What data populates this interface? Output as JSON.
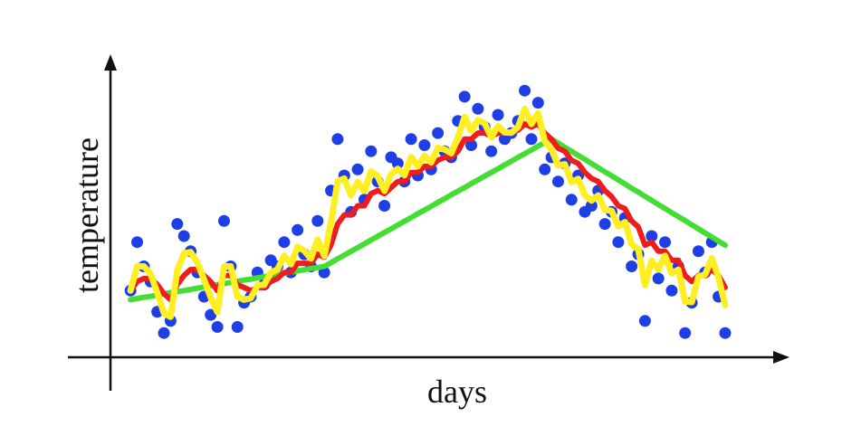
{
  "chart_data": {
    "type": "line",
    "x_label": "days",
    "y_label": "temperature",
    "xlim": [
      0,
      100
    ],
    "ylim": [
      0,
      100
    ],
    "x": [
      3,
      4,
      5,
      6,
      7,
      8,
      9,
      10,
      11,
      12,
      13,
      14,
      15,
      16,
      17,
      18,
      19,
      20,
      21,
      22,
      23,
      24,
      25,
      26,
      27,
      28,
      29,
      30,
      31,
      32,
      33,
      34,
      35,
      36,
      37,
      38,
      39,
      40,
      41,
      42,
      43,
      44,
      45,
      46,
      47,
      48,
      49,
      50,
      51,
      52,
      53,
      54,
      55,
      56,
      57,
      58,
      59,
      60,
      61,
      62,
      63,
      64,
      65,
      66,
      67,
      68,
      69,
      70,
      71,
      72,
      73,
      74,
      75,
      76,
      77,
      78,
      79,
      80,
      81,
      82,
      83,
      84,
      85,
      86,
      87,
      88,
      89,
      90,
      91,
      92
    ],
    "series": [
      {
        "mode": "markers",
        "color": "#1f3fe6",
        "values": [
          22,
          38,
          30,
          25,
          15,
          8,
          12,
          44,
          40,
          35,
          28,
          20,
          14,
          10,
          45,
          30,
          10,
          18,
          20,
          28,
          24,
          32,
          30,
          38,
          28,
          42,
          34,
          30,
          45,
          28,
          55,
          72,
          60,
          48,
          62,
          52,
          68,
          58,
          50,
          66,
          64,
          58,
          72,
          60,
          70,
          62,
          74,
          68,
          66,
          78,
          86,
          70,
          82,
          76,
          68,
          80,
          72,
          74,
          78,
          88,
          72,
          84,
          62,
          66,
          58,
          64,
          52,
          60,
          48,
          50,
          55,
          44,
          48,
          38,
          46,
          30,
          34,
          12,
          40,
          26,
          38,
          22,
          30,
          8,
          18,
          35,
          28,
          38,
          20,
          8
        ]
      },
      {
        "mode": "line",
        "color": "#44dd33",
        "values": [
          19,
          19.4,
          19.8,
          20.1,
          20.5,
          20.9,
          21.3,
          21.7,
          22,
          22.4,
          22.8,
          23.2,
          23.6,
          23.9,
          24.3,
          24.7,
          25.1,
          25.5,
          25.8,
          26.2,
          26.6,
          27,
          27.4,
          27.7,
          28.1,
          28.5,
          28.9,
          29.3,
          29.6,
          30,
          31.2,
          32.5,
          33.7,
          35,
          36.2,
          37.4,
          38.7,
          39.9,
          41.2,
          42.4,
          43.6,
          44.9,
          46.1,
          47.4,
          48.6,
          49.8,
          51.1,
          52.3,
          53.6,
          54.8,
          56,
          57.3,
          58.5,
          59.8,
          61,
          62.2,
          63.5,
          64.7,
          66,
          67.2,
          68.4,
          69.7,
          70.9,
          72,
          70.7,
          69.3,
          68,
          66.6,
          65.3,
          63.9,
          62.6,
          61.2,
          59.9,
          58.5,
          57.2,
          55.8,
          54.5,
          53.1,
          51.8,
          50.4,
          49.1,
          47.7,
          46.4,
          45.1,
          43.7,
          42.4,
          41,
          39.7,
          38.3,
          37
        ]
      },
      {
        "mode": "line",
        "color": "#ee1c1c",
        "values": [
          22,
          25,
          26,
          26,
          24,
          21,
          19,
          24,
          27,
          29,
          29,
          27,
          25,
          22,
          27,
          27,
          24,
          23,
          22,
          23,
          23,
          25,
          26,
          28,
          28,
          31,
          31,
          31,
          34,
          33,
          37,
          44,
          47,
          47,
          50,
          50,
          54,
          55,
          54,
          56,
          58,
          58,
          61,
          61,
          63,
          63,
          65,
          66,
          66,
          68,
          72,
          72,
          74,
          74,
          73,
          74,
          74,
          74,
          75,
          77,
          76,
          77,
          74,
          72,
          69,
          68,
          65,
          64,
          61,
          59,
          58,
          55,
          53,
          50,
          49,
          45,
          43,
          37,
          38,
          35,
          35,
          32,
          32,
          27,
          25,
          27,
          27,
          29,
          27,
          23
        ]
      },
      {
        "mode": "line",
        "color": "#ffee22",
        "values": [
          22,
          30,
          30,
          27.5,
          21.3,
          14.6,
          13.3,
          28.7,
          34.3,
          34.7,
          31.3,
          25.7,
          19.8,
          14.9,
          30,
          30,
          20,
          19,
          19.5,
          23.8,
          23.9,
          27.9,
          29,
          33.5,
          30.7,
          36.4,
          35.2,
          32.6,
          38.8,
          33.4,
          44.2,
          58.1,
          59,
          53.5,
          57.8,
          54.9,
          61.4,
          59.7,
          54.9,
          60.4,
          62.2,
          60.1,
          66.1,
          63,
          66.5,
          64.3,
          69.1,
          68.6,
          67.3,
          72.6,
          79.3,
          74.7,
          78.3,
          77.2,
          72.6,
          76.3,
          74.2,
          74.1,
          76,
          82,
          77,
          80.5,
          71.3,
          68.6,
          63.3,
          63.7,
          57.8,
          58.9,
          53.5,
          51.7,
          53.4,
          48.7,
          48.3,
          43.2,
          44.6,
          37.3,
          35.6,
          23.8,
          31.9,
          29,
          33.5,
          27.7,
          28.9,
          18.4,
          18.2,
          26.6,
          27.3,
          32.7,
          26.3,
          17.2
        ]
      }
    ]
  }
}
